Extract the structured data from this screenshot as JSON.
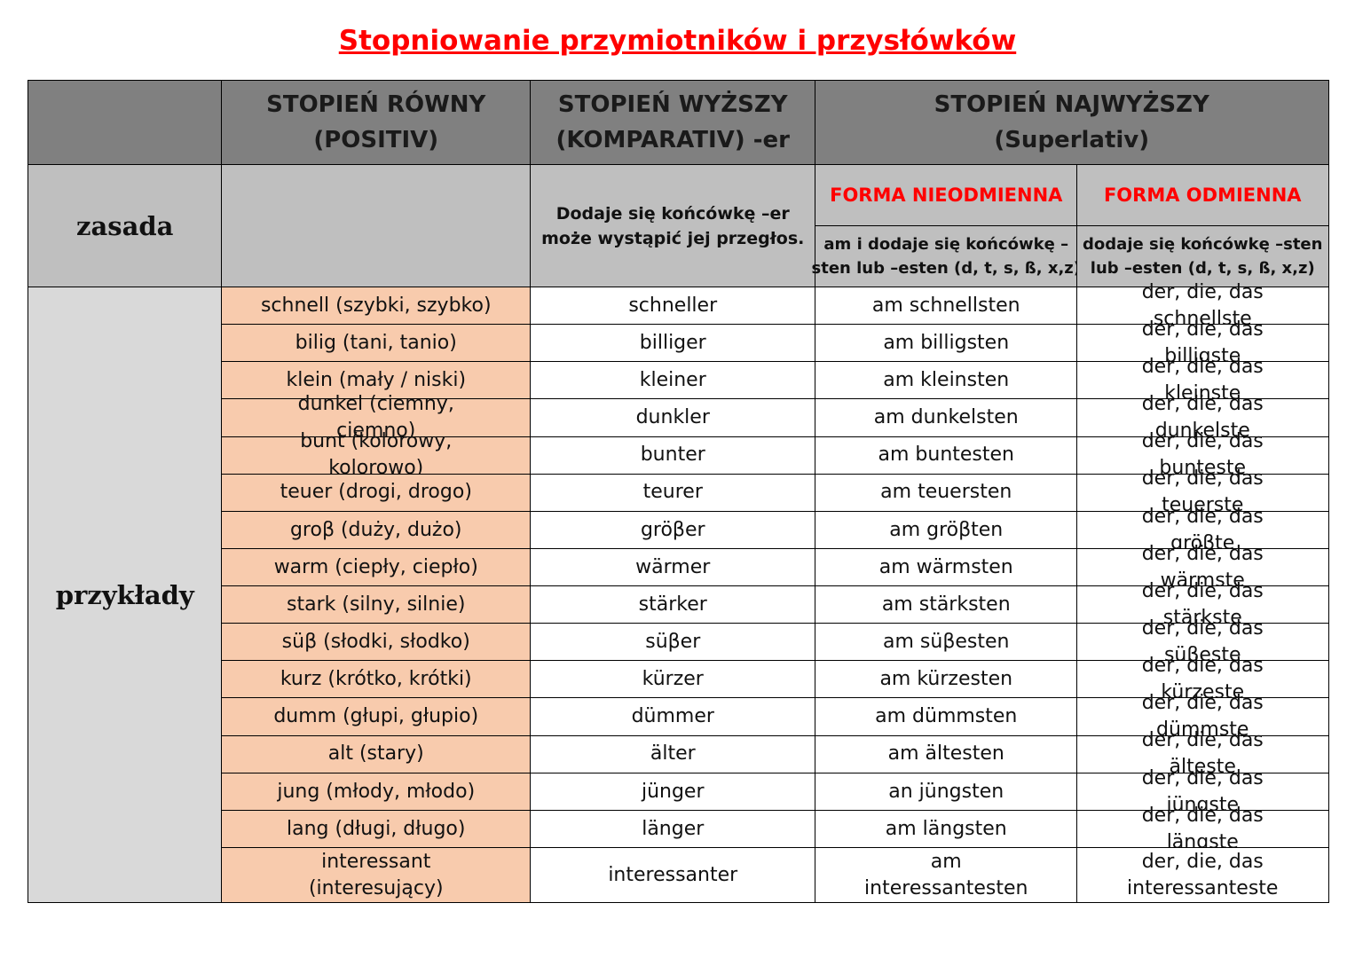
{
  "title": "Stopniowanie przymiotników i przysłówków",
  "header": {
    "columns": [
      [
        "STOPIEŃ RÓWNY",
        "(POSITIV)"
      ],
      [
        "STOPIEŃ WYŻSZY",
        "(KOMPARATIV) -er"
      ],
      [
        "STOPIEŃ NAJWYŻSZY",
        "(Superlativ)"
      ]
    ]
  },
  "rule": {
    "label": "zasada",
    "komparativ": [
      "Dodaje się końcówkę –er",
      "może wystąpić jej przegłos."
    ],
    "forms": [
      {
        "name": "FORMA NIEODMIENNA",
        "rule": [
          "am i dodaje się końcówkę –",
          "sten lub –esten (d, t, s, ß, x,z)"
        ]
      },
      {
        "name": "FORMA ODMIENNA",
        "rule": [
          "dodaje się końcówkę –sten",
          "lub –esten (d, t, s, ß, x,z)"
        ]
      }
    ]
  },
  "examples": {
    "label": "przykłady",
    "rows": [
      [
        "schnell (szybki, szybko)",
        "schneller",
        "am schnellsten",
        "der, die, das schnellste"
      ],
      [
        "bilig (tani, tanio)",
        "billiger",
        "am billigsten",
        "der, die, das billigste"
      ],
      [
        "klein (mały / niski)",
        "kleiner",
        "am kleinsten",
        "der, die, das kleinste"
      ],
      [
        "dunkel (ciemny, ciemno)",
        "dunkler",
        "am dunkelsten",
        "der, die, das dunkelste"
      ],
      [
        "bunt (kolorowy, kolorowo)",
        "bunter",
        "am buntesten",
        "der, die, das bunteste"
      ],
      [
        "teuer (drogi, drogo)",
        "teurer",
        "am teuersten",
        "der, die, das teuerste"
      ],
      [
        "groβ (duży, dużo)",
        "gröβer",
        "am gröβten",
        "der, die, das gröβte"
      ],
      [
        "warm (ciepły, ciepło)",
        "wärmer",
        "am wärmsten",
        "der, die, das wärmste"
      ],
      [
        "stark (silny, silnie)",
        "stärker",
        "am stärksten",
        "der, die, das stärkste"
      ],
      [
        "süβ (słodki, słodko)",
        "süβer",
        "am süβesten",
        "der, die, das süβeste"
      ],
      [
        "kurz (krótko, krótki)",
        "kürzer",
        "am kürzesten",
        "der, die, das kürzeste"
      ],
      [
        "dumm (głupi, głupio)",
        "dümmer",
        "am dümmsten",
        "der, die, das dümmste"
      ],
      [
        "alt (stary)",
        "älter",
        "am ältesten",
        "der, die, das älteste"
      ],
      [
        "jung (młody, młodo)",
        "jünger",
        "an jüngsten",
        "der, die, das jüngste"
      ],
      [
        "lang (długi, długo)",
        "länger",
        "am längsten",
        "der, die, das längste"
      ],
      [
        "interessant (interesujący)",
        "interessanter",
        "am interessantesten",
        "der, die, das interessanteste"
      ]
    ]
  }
}
